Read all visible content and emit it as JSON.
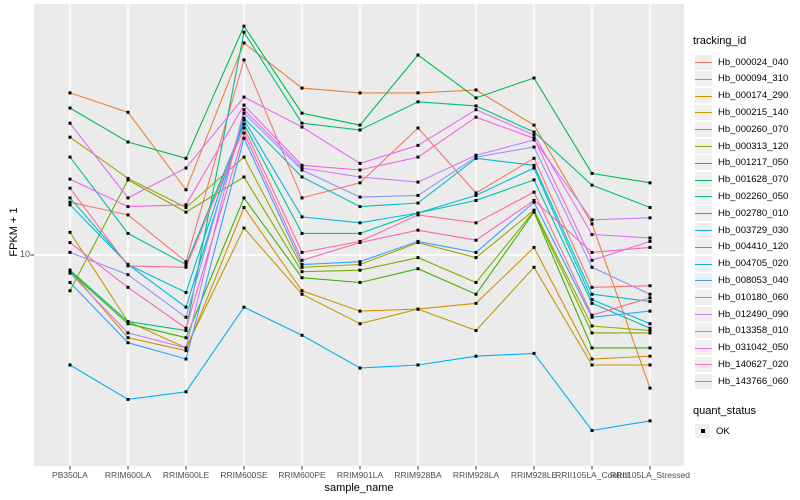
{
  "figure": {
    "background": "#FFFFFF",
    "panel_background": "#EBEBEB",
    "grid_color": "#FFFFFF",
    "tick_color": "#333333",
    "axis_text_color": "#4D4D4D",
    "point_color": "#000000"
  },
  "y_axis": {
    "title": "FPKM + 1",
    "tick_label": "10"
  },
  "x_axis": {
    "title": "sample_name"
  },
  "legend": {
    "tracking_title": "tracking_id",
    "quant_title": "quant_status",
    "quant_ok_label": "OK"
  },
  "chart_data": {
    "type": "line",
    "title": "",
    "xlabel": "sample_name",
    "ylabel": "FPKM + 1",
    "y_scale": "log10",
    "y_ticks": [
      10
    ],
    "ylim": [
      2.2,
      65
    ],
    "grid": true,
    "legend_position": "right",
    "point_marker": "filled-square",
    "quant_status": "OK",
    "categories": [
      "PB350LA",
      "RRIM600LA",
      "RRIM600LE",
      "RRIM600SE",
      "RRIM600PE",
      "RRIM901LA",
      "RRIM928BA",
      "RRIM928LA",
      "RRIM928LE",
      "RRII105LA_Control",
      "RRII105LA_Stressed"
    ],
    "series": [
      {
        "name": "Hb_000024_040",
        "color": "#F8766D",
        "values": [
          15.0,
          13.6,
          9.5,
          44.7,
          15.5,
          17.4,
          26.5,
          16.1,
          21.0,
          7.8,
          7.9
        ]
      },
      {
        "name": "Hb_000094_310",
        "color": "#EA8331",
        "values": [
          34.7,
          29.9,
          16.5,
          50.9,
          36.0,
          34.7,
          34.7,
          35.5,
          27.1,
          12.7,
          3.6
        ]
      },
      {
        "name": "Hb_000174_290",
        "color": "#D89000",
        "values": [
          8.9,
          5.3,
          4.8,
          14.4,
          7.6,
          6.5,
          6.6,
          6.9,
          10.6,
          4.5,
          4.6
        ]
      },
      {
        "name": "Hb_000215_140",
        "color": "#C09B00",
        "values": [
          11.9,
          6.0,
          4.9,
          12.3,
          7.4,
          5.9,
          6.6,
          5.6,
          9.1,
          4.3,
          4.3
        ]
      },
      {
        "name": "Hb_000260_070",
        "color": "#A3A500",
        "values": [
          24.7,
          18.0,
          14.4,
          21.2,
          9.1,
          9.3,
          11.0,
          9.8,
          14.1,
          5.8,
          5.6
        ]
      },
      {
        "name": "Hb_000313_120",
        "color": "#7CAE00",
        "values": [
          7.6,
          17.8,
          13.9,
          18.2,
          8.8,
          8.9,
          9.8,
          8.1,
          14.0,
          5.5,
          5.5
        ]
      },
      {
        "name": "Hb_001217_050",
        "color": "#39B600",
        "values": [
          8.8,
          5.9,
          5.3,
          15.5,
          8.4,
          8.1,
          9.0,
          7.4,
          13.9,
          4.9,
          4.9
        ]
      },
      {
        "name": "Hb_001628_070",
        "color": "#00BB4E",
        "values": [
          30.9,
          23.8,
          21.0,
          57.9,
          29.7,
          27.1,
          46.4,
          33.4,
          38.9,
          18.7,
          17.4
        ]
      },
      {
        "name": "Hb_002260_050",
        "color": "#00BF7D",
        "values": [
          8.9,
          6.0,
          5.6,
          55.3,
          27.5,
          26.1,
          32.4,
          31.4,
          25.7,
          17.1,
          14.4
        ]
      },
      {
        "name": "Hb_002780_010",
        "color": "#00C1A3",
        "values": [
          21.2,
          11.8,
          9.3,
          27.3,
          11.8,
          11.8,
          13.8,
          15.2,
          17.8,
          6.9,
          5.7
        ]
      },
      {
        "name": "Hb_003729_030",
        "color": "#00BFC4",
        "values": [
          15.5,
          9.3,
          7.5,
          28.6,
          18.2,
          14.5,
          14.9,
          21.0,
          19.9,
          7.4,
          7.0
        ]
      },
      {
        "name": "Hb_004410_120",
        "color": "#00BAE0",
        "values": [
          14.7,
          9.3,
          6.7,
          28.2,
          13.4,
          12.8,
          13.8,
          15.8,
          19.5,
          7.1,
          5.9
        ]
      },
      {
        "name": "Hb_004705_020",
        "color": "#00B0F6",
        "values": [
          4.3,
          3.3,
          3.5,
          6.7,
          5.4,
          4.2,
          4.3,
          4.6,
          4.7,
          2.6,
          2.8
        ]
      },
      {
        "name": "Hb_008053_040",
        "color": "#35A2FF",
        "values": [
          8.1,
          5.1,
          4.5,
          24.5,
          9.3,
          9.5,
          11.1,
          10.2,
          15.0,
          6.2,
          6.5
        ]
      },
      {
        "name": "Hb_010180_060",
        "color": "#9590FF",
        "values": [
          10.2,
          8.6,
          6.2,
          29.7,
          19.2,
          15.6,
          15.8,
          21.2,
          22.9,
          9.1,
          7.4
        ]
      },
      {
        "name": "Hb_012490_090",
        "color": "#C77CFF",
        "values": [
          8.7,
          5.5,
          4.9,
          30.5,
          19.5,
          18.2,
          17.5,
          21.5,
          24.2,
          13.1,
          13.3
        ]
      },
      {
        "name": "Hb_013358_010",
        "color": "#E76BF3",
        "values": [
          27.5,
          15.5,
          19.5,
          33.6,
          26.7,
          20.2,
          23.2,
          30.5,
          25.1,
          11.7,
          11.4
        ]
      },
      {
        "name": "Hb_031042_050",
        "color": "#FA62DB",
        "values": [
          17.9,
          14.5,
          14.7,
          31.6,
          19.9,
          19.2,
          21.2,
          28.8,
          24.5,
          9.6,
          11.1
        ]
      },
      {
        "name": "Hb_140627_020",
        "color": "#FF62BC",
        "values": [
          11.0,
          7.8,
          5.7,
          25.5,
          9.6,
          11.0,
          12.1,
          11.2,
          15.2,
          10.2,
          10.6
        ]
      },
      {
        "name": "Hb_143766_060",
        "color": "#FF6A98",
        "values": [
          16.7,
          9.2,
          9.1,
          26.5,
          10.2,
          11.1,
          13.6,
          12.8,
          16.2,
          6.3,
          7.2
        ]
      }
    ]
  }
}
